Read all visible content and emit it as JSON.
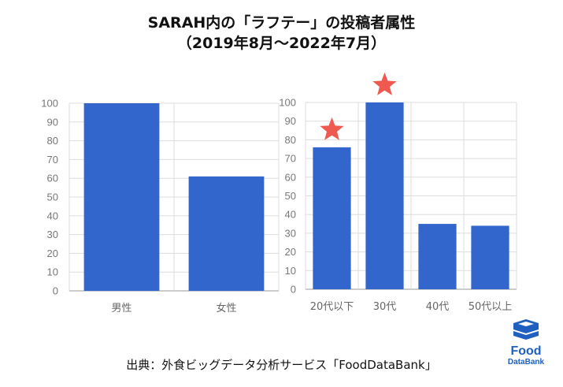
{
  "title_line1": "SARAH内の「ラフテー」の投稿者属性",
  "title_line2": "（2019年8月～2022年7月）",
  "source": "出典：外食ビッグデータ分析サービス「FoodDataBank」",
  "logo": {
    "line1": "Food",
    "line2": "DataBank",
    "icon": "fooddatabank-logo-icon"
  },
  "colors": {
    "bar": "#3366cc",
    "star": "#ee5a4f",
    "grid": "#dddddd",
    "axis": "#999999"
  },
  "chart_data": [
    {
      "type": "bar",
      "categories": [
        "男性",
        "女性"
      ],
      "values": [
        100,
        61
      ],
      "ylim": [
        0,
        100
      ],
      "yticks": [
        0,
        10,
        20,
        30,
        40,
        50,
        60,
        70,
        80,
        90,
        100
      ],
      "grid": true
    },
    {
      "type": "bar",
      "categories": [
        "20代以下",
        "30代",
        "40代",
        "50代以上"
      ],
      "values": [
        76,
        100,
        35,
        34
      ],
      "ylim": [
        0,
        100
      ],
      "yticks": [
        0,
        10,
        20,
        30,
        40,
        50,
        60,
        70,
        80,
        90,
        100
      ],
      "grid": true,
      "annotations": [
        {
          "category": "20代以下",
          "marker": "star"
        },
        {
          "category": "30代",
          "marker": "star"
        }
      ]
    }
  ]
}
